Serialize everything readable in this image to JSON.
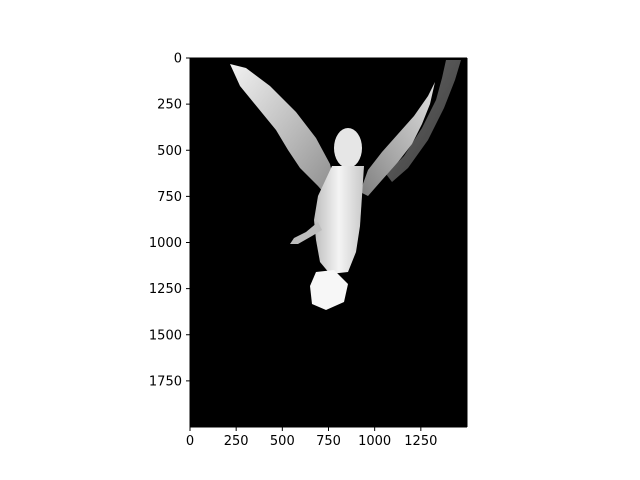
{
  "chart_data": {
    "type": "image",
    "title": "",
    "xlabel": "",
    "ylabel": "",
    "image_extent": {
      "width": 1500,
      "height": 2000
    },
    "xlim": [
      0,
      1500
    ],
    "ylim": [
      2000,
      0
    ],
    "grid": false,
    "colormap": "grayscale",
    "background_color": "#000000",
    "subject": "angel statue with raised wings",
    "x_ticks": [
      {
        "value": 0,
        "label": "0"
      },
      {
        "value": 250,
        "label": "250"
      },
      {
        "value": 500,
        "label": "500"
      },
      {
        "value": 750,
        "label": "750"
      },
      {
        "value": 1000,
        "label": "1000"
      },
      {
        "value": 1250,
        "label": "1250"
      }
    ],
    "y_ticks": [
      {
        "value": 0,
        "label": "0"
      },
      {
        "value": 250,
        "label": "250"
      },
      {
        "value": 500,
        "label": "500"
      },
      {
        "value": 750,
        "label": "750"
      },
      {
        "value": 1000,
        "label": "1000"
      },
      {
        "value": 1250,
        "label": "1250"
      },
      {
        "value": 1500,
        "label": "1500"
      },
      {
        "value": 1750,
        "label": "1750"
      }
    ]
  }
}
